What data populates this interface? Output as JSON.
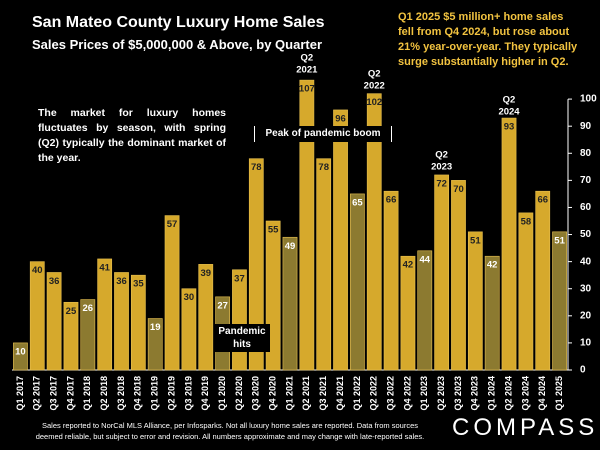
{
  "chart_data": {
    "type": "bar",
    "title": "San Mateo County Luxury Home Sales",
    "subtitle": "Sales Prices of $5,000,000 & Above, by Quarter",
    "note": "Q1 2025 $5 million+ home sales fell from Q4 2024, but rose  about 21% year-over-year. They typically surge substantially higher in Q2.",
    "side_note": "The market for luxury homes fluctuates by season, with spring (Q2) typically the dominant market of the year.",
    "annotations": [
      "Peak of pandemic boom",
      "Pandemic hits"
    ],
    "callouts": [
      [
        "Q2",
        "2021"
      ],
      [
        "Q2",
        "2022"
      ],
      [
        "Q2",
        "2023"
      ],
      [
        "Q2",
        "2024"
      ]
    ],
    "footer": [
      "Sales reported to NorCal MLS Alliance, per  Infosparks. Not all luxury home sales are reported. Data from sources",
      "deemed reliable, but subject to error and revision. All numbers approximate and may change with late-reported sales."
    ],
    "brand": "COMPASS",
    "categories": [
      "Q1 2017",
      "Q2 2017",
      "Q3 2017",
      "Q4 2017",
      "Q1 2018",
      "Q2 2018",
      "Q3 2018",
      "Q4 2018",
      "Q1 2019",
      "Q2 2019",
      "Q3 2019",
      "Q4 2019",
      "Q1 2020",
      "Q2 2020",
      "Q3 2020",
      "Q4 2020",
      "Q1 2021",
      "Q2 2021",
      "Q3 2021",
      "Q4 2021",
      "Q1 2022",
      "Q2 2022",
      "Q3 2022",
      "Q4 2022",
      "Q1 2023",
      "Q2 2023",
      "Q3 2023",
      "Q4 2023",
      "Q1 2024",
      "Q2 2024",
      "Q3 2024",
      "Q4 2024",
      "Q1 2025"
    ],
    "values": [
      10,
      40,
      36,
      25,
      26,
      41,
      36,
      35,
      19,
      57,
      30,
      39,
      27,
      37,
      78,
      55,
      49,
      107,
      78,
      96,
      65,
      102,
      66,
      42,
      44,
      72,
      70,
      51,
      42,
      93,
      58,
      66,
      51
    ],
    "color": "#d6a92c",
    "q1_color": "#8c7a30",
    "ylim": [
      0,
      110
    ],
    "yticks": [
      0,
      10,
      20,
      30,
      40,
      50,
      60,
      70,
      80,
      90,
      100
    ]
  }
}
